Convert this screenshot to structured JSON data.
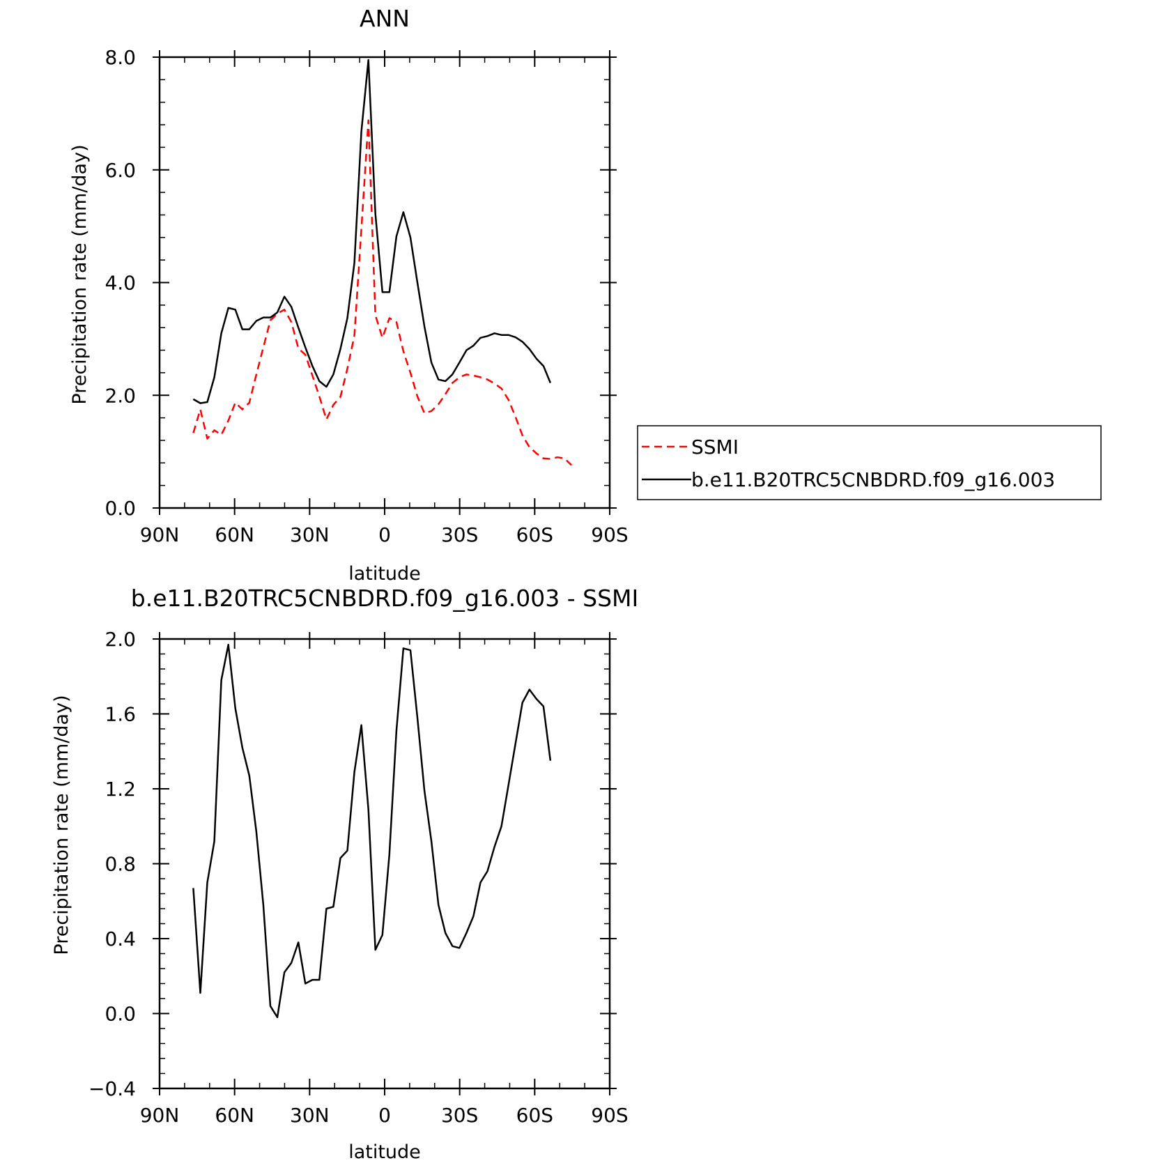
{
  "chart_data": [
    {
      "type": "line",
      "title": "ANN",
      "xlabel": "latitude",
      "ylabel": "Precipitation rate (mm/day)",
      "xlim": [
        90,
        -90
      ],
      "ylim": [
        0,
        8
      ],
      "x_ticks": [
        90,
        60,
        30,
        0,
        -30,
        -60,
        -90
      ],
      "x_tick_labels": [
        "90N",
        "60N",
        "30N",
        "0",
        "30S",
        "60S",
        "90S"
      ],
      "y_ticks": [
        0,
        2,
        4,
        6,
        8
      ],
      "y_tick_labels": [
        "0.0",
        "2.0",
        "4.0",
        "6.0",
        "8.0"
      ],
      "grid": false,
      "legend_position": "right",
      "series": [
        {
          "name": "SSMI",
          "color": "#ff0000",
          "style": "dashed",
          "x": [
            76.5,
            73.7,
            70.9,
            68.1,
            65.3,
            62.5,
            59.7,
            56.9,
            54.1,
            51.3,
            48.5,
            45.7,
            42.9,
            40.1,
            37.3,
            34.5,
            31.7,
            28.9,
            26.1,
            23.3,
            20.5,
            17.7,
            14.9,
            12.1,
            9.3,
            6.5,
            3.7,
            0.9,
            -1.9,
            -4.7,
            -7.5,
            -10.3,
            -13.1,
            -15.9,
            -18.7,
            -21.5,
            -24.3,
            -27.1,
            -29.9,
            -32.7,
            -35.5,
            -38.3,
            -41.1,
            -43.9,
            -46.7,
            -49.5,
            -52.3,
            -55.1,
            -57.9,
            -60.7,
            -63.5,
            -66.3,
            -69.1,
            -71.9,
            -74.7
          ],
          "y": [
            1.33,
            1.75,
            1.23,
            1.38,
            1.3,
            1.55,
            1.87,
            1.75,
            1.87,
            2.37,
            2.85,
            3.33,
            3.45,
            3.52,
            3.3,
            2.83,
            2.72,
            2.35,
            1.98,
            1.57,
            1.83,
            1.97,
            2.47,
            3.06,
            4.95,
            6.88,
            3.42,
            3.02,
            3.37,
            3.3,
            2.78,
            2.4,
            1.98,
            1.68,
            1.72,
            1.84,
            2.02,
            2.22,
            2.32,
            2.37,
            2.35,
            2.32,
            2.28,
            2.21,
            2.12,
            1.92,
            1.62,
            1.29,
            1.08,
            0.97,
            0.88,
            0.87,
            0.9,
            0.88,
            0.76
          ]
        },
        {
          "name": "b.e11.B20TRC5CNBDRD.f09_g16.003",
          "color": "#000000",
          "style": "solid",
          "x": [
            76.5,
            73.7,
            70.9,
            68.1,
            65.3,
            62.5,
            59.7,
            56.9,
            54.1,
            51.3,
            48.5,
            45.7,
            42.9,
            40.1,
            37.3,
            34.5,
            31.7,
            28.9,
            26.1,
            23.3,
            20.5,
            17.7,
            14.9,
            12.1,
            9.3,
            6.5,
            3.7,
            0.9,
            -1.9,
            -4.7,
            -7.5,
            -10.3,
            -13.1,
            -15.9,
            -18.7,
            -21.5,
            -24.3,
            -27.1,
            -29.9,
            -32.7,
            -35.5,
            -38.3,
            -41.1,
            -43.9,
            -46.7,
            -49.5,
            -52.3,
            -55.1,
            -57.9,
            -60.7,
            -63.5,
            -66.3
          ],
          "y": [
            1.93,
            1.86,
            1.88,
            2.32,
            3.1,
            3.55,
            3.52,
            3.17,
            3.17,
            3.32,
            3.38,
            3.38,
            3.47,
            3.75,
            3.57,
            3.2,
            2.85,
            2.52,
            2.25,
            2.15,
            2.37,
            2.82,
            3.37,
            4.35,
            6.68,
            7.95,
            5.22,
            3.83,
            3.83,
            4.82,
            5.25,
            4.8,
            4.0,
            3.22,
            2.58,
            2.28,
            2.25,
            2.37,
            2.58,
            2.8,
            2.88,
            3.02,
            3.05,
            3.1,
            3.07,
            3.07,
            3.03,
            2.95,
            2.82,
            2.65,
            2.52,
            2.22
          ]
        }
      ]
    },
    {
      "type": "line",
      "title": "b.e11.B20TRC5CNBDRD.f09_g16.003 - SSMI",
      "xlabel": "latitude",
      "ylabel": "Precipitation rate (mm/day)",
      "xlim": [
        90,
        -90
      ],
      "ylim": [
        -0.4,
        2.0
      ],
      "x_ticks": [
        90,
        60,
        30,
        0,
        -30,
        -60,
        -90
      ],
      "x_tick_labels": [
        "90N",
        "60N",
        "30N",
        "0",
        "30S",
        "60S",
        "90S"
      ],
      "y_ticks": [
        -0.4,
        0,
        0.4,
        0.8,
        1.2,
        1.6,
        2.0
      ],
      "y_tick_labels": [
        "−0.4",
        "0.0",
        "0.4",
        "0.8",
        "1.2",
        "1.6",
        "2.0"
      ],
      "grid": false,
      "series": [
        {
          "color": "#000000",
          "style": "solid",
          "x": [
            76.5,
            73.7,
            70.9,
            68.1,
            65.3,
            62.5,
            59.7,
            56.9,
            54.1,
            51.3,
            48.5,
            45.7,
            42.9,
            40.1,
            37.3,
            34.5,
            31.7,
            28.9,
            26.1,
            23.3,
            20.5,
            17.7,
            14.9,
            12.1,
            9.3,
            6.5,
            3.7,
            0.9,
            -1.9,
            -4.7,
            -7.5,
            -10.3,
            -13.1,
            -15.9,
            -18.7,
            -21.5,
            -24.3,
            -27.1,
            -29.9,
            -32.7,
            -35.5,
            -38.3,
            -41.1,
            -43.9,
            -46.7,
            -49.5,
            -52.3,
            -55.1,
            -57.9,
            -60.7,
            -63.5,
            -66.3
          ],
          "y": [
            0.67,
            0.11,
            0.7,
            0.92,
            1.78,
            1.97,
            1.63,
            1.42,
            1.27,
            0.97,
            0.58,
            0.04,
            -0.02,
            0.22,
            0.27,
            0.38,
            0.16,
            0.18,
            0.18,
            0.56,
            0.57,
            0.83,
            0.87,
            1.29,
            1.54,
            1.09,
            0.34,
            0.42,
            0.85,
            1.51,
            1.95,
            1.94,
            1.58,
            1.19,
            0.92,
            0.58,
            0.43,
            0.36,
            0.35,
            0.43,
            0.52,
            0.7,
            0.76,
            0.89,
            1.0,
            1.22,
            1.44,
            1.66,
            1.73,
            1.68,
            1.64,
            1.35
          ]
        }
      ]
    }
  ]
}
